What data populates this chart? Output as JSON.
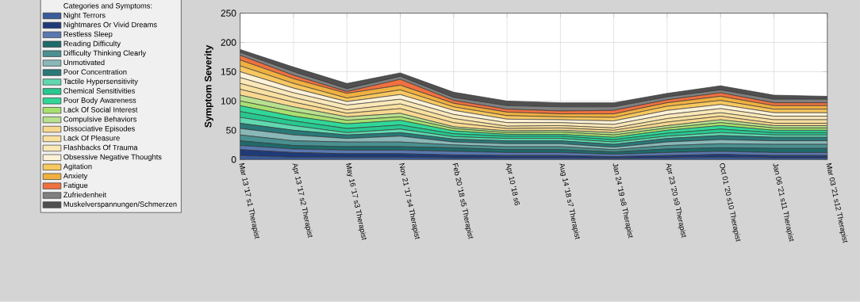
{
  "chart_data": {
    "type": "area",
    "stacked": true,
    "ylabel": "Symptom Severity",
    "legend_title": "Categories and Symptoms:",
    "legend": "left",
    "grid": true,
    "categories": [
      "Mar 13 '17 s1 Therapist",
      "Apr 13 '17 s2 Therapist",
      "May 16 '17 s3 Therapist",
      "Nov 21 '17 s4 Therapist",
      "Feb 20 '18 s5 Therapist",
      "Apr 10 '18 s6",
      "Aug 14 '18 s7 Therapist",
      "Jan 24 '19 s8 Therapist",
      "Apr 23 '20 s9 Therapist",
      "Oct 01 '20 s10 Therapist",
      "Jan 06 '21 s11 Therapist",
      "Mar 03 '21 s12 Therapist"
    ],
    "ylim": [
      0,
      250
    ],
    "yticks": [
      0,
      50,
      100,
      150,
      200,
      250
    ],
    "series": [
      {
        "name": "Night Terrors",
        "color": "#3a5a9a",
        "values": [
          7,
          4,
          4,
          4,
          3,
          3,
          3,
          2,
          3,
          4,
          3,
          3
        ]
      },
      {
        "name": "Nightmares Or Vivid Dreams",
        "color": "#1f3a78",
        "values": [
          10,
          8,
          6,
          6,
          5,
          4,
          4,
          3,
          4,
          5,
          4,
          4
        ]
      },
      {
        "name": "Restless Sleep",
        "color": "#5a78b0",
        "values": [
          7,
          6,
          6,
          6,
          6,
          5,
          5,
          4,
          5,
          5,
          5,
          5
        ]
      },
      {
        "name": "Reading Difficulty",
        "color": "#1f6a6a",
        "values": [
          8,
          6,
          6,
          6,
          6,
          5,
          5,
          4,
          6,
          6,
          7,
          7
        ]
      },
      {
        "name": "Difficulty Thinking Clearly",
        "color": "#4a9090",
        "values": [
          10,
          8,
          8,
          8,
          5,
          5,
          5,
          4,
          6,
          7,
          7,
          7
        ]
      },
      {
        "name": "Unmotivated",
        "color": "#8ab8b8",
        "values": [
          11,
          10,
          6,
          10,
          5,
          5,
          5,
          4,
          6,
          7,
          6,
          6
        ]
      },
      {
        "name": "Poor Concentration",
        "color": "#2a7878",
        "values": [
          9,
          8,
          6,
          6,
          5,
          5,
          5,
          5,
          6,
          7,
          6,
          6
        ]
      },
      {
        "name": "Tactile Hypersensitivity",
        "color": "#60d8b0",
        "values": [
          10,
          8,
          4,
          6,
          4,
          4,
          4,
          4,
          4,
          5,
          4,
          4
        ]
      },
      {
        "name": "Chemical Sensitivities",
        "color": "#28c890",
        "values": [
          10,
          8,
          7,
          7,
          5,
          4,
          4,
          4,
          5,
          6,
          4,
          4
        ]
      },
      {
        "name": "Poor Body Awareness",
        "color": "#30d898",
        "values": [
          10,
          8,
          8,
          8,
          5,
          3,
          3,
          4,
          5,
          6,
          4,
          4
        ]
      },
      {
        "name": "Lack Of Social Interest",
        "color": "#a8e070",
        "values": [
          8,
          8,
          6,
          6,
          4,
          3,
          4,
          4,
          4,
          5,
          4,
          4
        ]
      },
      {
        "name": "Compulsive Behaviors",
        "color": "#b8e090",
        "values": [
          10,
          8,
          6,
          6,
          3,
          3,
          3,
          4,
          4,
          5,
          4,
          4
        ]
      },
      {
        "name": "Dissociative Episodes",
        "color": "#f8d890",
        "values": [
          10,
          8,
          6,
          8,
          7,
          4,
          4,
          4,
          6,
          6,
          4,
          4
        ]
      },
      {
        "name": "Lack Of Pleasure",
        "color": "#f8e0a0",
        "values": [
          10,
          8,
          6,
          8,
          7,
          4,
          4,
          4,
          6,
          6,
          6,
          6
        ]
      },
      {
        "name": "Flashbacks Of Trauma",
        "color": "#fbe8b8",
        "values": [
          10,
          8,
          8,
          8,
          7,
          6,
          5,
          6,
          7,
          7,
          6,
          6
        ]
      },
      {
        "name": "Obsessive Negative Thoughts",
        "color": "#fdf2d8",
        "values": [
          10,
          8,
          6,
          8,
          7,
          6,
          5,
          6,
          7,
          7,
          6,
          6
        ]
      },
      {
        "name": "Agitation",
        "color": "#f8c860",
        "values": [
          10,
          8,
          6,
          8,
          6,
          6,
          5,
          6,
          7,
          7,
          6,
          6
        ]
      },
      {
        "name": "Anxiety",
        "color": "#f0b040",
        "values": [
          10,
          8,
          8,
          8,
          6,
          6,
          5,
          6,
          6,
          7,
          6,
          6
        ]
      },
      {
        "name": "Fatigue",
        "color": "#f07040",
        "values": [
          8,
          6,
          3,
          10,
          5,
          5,
          5,
          6,
          5,
          6,
          5,
          5
        ]
      },
      {
        "name": "Zufriedenheit",
        "color": "#808080",
        "values": [
          5,
          6,
          5,
          5,
          5,
          6,
          7,
          6,
          5,
          5,
          6,
          6
        ]
      },
      {
        "name": "Muskelverspannungen/Schmerzen",
        "color": "#505050",
        "values": [
          5,
          8,
          9,
          6,
          9,
          8,
          7,
          7,
          6,
          7,
          7,
          5
        ]
      }
    ]
  }
}
